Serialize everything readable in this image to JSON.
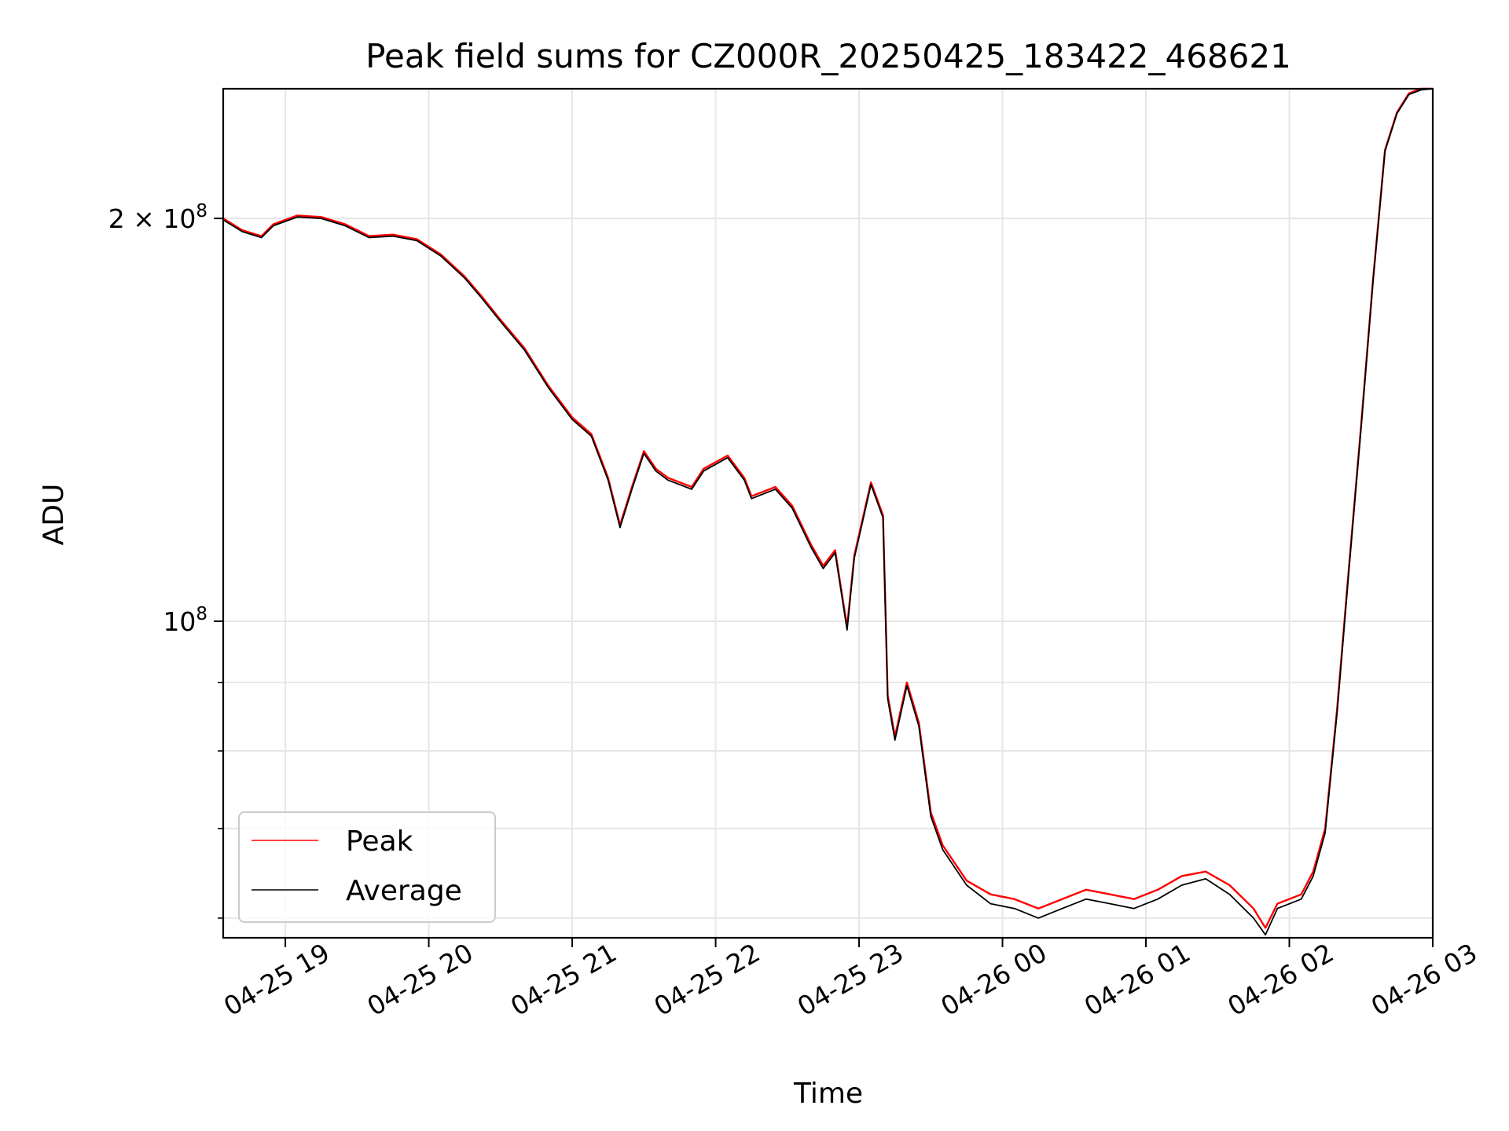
{
  "chart_data": {
    "type": "line",
    "title": "Peak field sums for CZ000R_20250425_183422_468621",
    "xlabel": "Time",
    "ylabel": "ADU",
    "x_is_time": true,
    "xlim": [
      "2025-04-25 18:34",
      "2025-04-26 03:00"
    ],
    "ylim": [
      58000000,
      250000000
    ],
    "y_scale": "log",
    "grid": true,
    "legend_position": "lower-left",
    "x_ticks": [
      {
        "t": "2025-04-25 19:00",
        "label": "04-25 19"
      },
      {
        "t": "2025-04-25 20:00",
        "label": "04-25 20"
      },
      {
        "t": "2025-04-25 21:00",
        "label": "04-25 21"
      },
      {
        "t": "2025-04-25 22:00",
        "label": "04-25 22"
      },
      {
        "t": "2025-04-25 23:00",
        "label": "04-25 23"
      },
      {
        "t": "2025-04-26 00:00",
        "label": "04-26 00"
      },
      {
        "t": "2025-04-26 01:00",
        "label": "04-26 01"
      },
      {
        "t": "2025-04-26 02:00",
        "label": "04-26 02"
      },
      {
        "t": "2025-04-26 03:00",
        "label": "04-26 03"
      }
    ],
    "y_major_ticks": [
      {
        "value": 100000000,
        "base": "10",
        "exp": "8",
        "coef": ""
      },
      {
        "value": 200000000,
        "base": "10",
        "exp": "8",
        "coef": "2"
      }
    ],
    "y_minor_ticks": [
      60000000,
      70000000,
      80000000,
      90000000
    ],
    "series": [
      {
        "name": "Peak",
        "color": "#ff0000",
        "x": [
          "2025-04-25 18:34",
          "2025-04-25 18:42",
          "2025-04-25 18:50",
          "2025-04-25 18:55",
          "2025-04-25 19:05",
          "2025-04-25 19:15",
          "2025-04-25 19:25",
          "2025-04-25 19:35",
          "2025-04-25 19:45",
          "2025-04-25 19:55",
          "2025-04-25 20:05",
          "2025-04-25 20:15",
          "2025-04-25 20:22",
          "2025-04-25 20:30",
          "2025-04-25 20:40",
          "2025-04-25 20:50",
          "2025-04-25 21:00",
          "2025-04-25 21:08",
          "2025-04-25 21:15",
          "2025-04-25 21:20",
          "2025-04-25 21:25",
          "2025-04-25 21:30",
          "2025-04-25 21:35",
          "2025-04-25 21:40",
          "2025-04-25 21:50",
          "2025-04-25 21:55",
          "2025-04-25 22:05",
          "2025-04-25 22:12",
          "2025-04-25 22:15",
          "2025-04-25 22:25",
          "2025-04-25 22:32",
          "2025-04-25 22:40",
          "2025-04-25 22:45",
          "2025-04-25 22:50",
          "2025-04-25 22:55",
          "2025-04-25 22:58",
          "2025-04-25 23:05",
          "2025-04-25 23:10",
          "2025-04-25 23:12",
          "2025-04-25 23:15",
          "2025-04-25 23:20",
          "2025-04-25 23:25",
          "2025-04-25 23:30",
          "2025-04-25 23:35",
          "2025-04-25 23:45",
          "2025-04-25 23:55",
          "2025-04-26 00:05",
          "2025-04-26 00:15",
          "2025-04-26 00:25",
          "2025-04-26 00:35",
          "2025-04-26 00:45",
          "2025-04-26 00:55",
          "2025-04-26 01:05",
          "2025-04-26 01:15",
          "2025-04-26 01:25",
          "2025-04-26 01:35",
          "2025-04-26 01:45",
          "2025-04-26 01:50",
          "2025-04-26 01:55",
          "2025-04-26 02:05",
          "2025-04-26 02:10",
          "2025-04-26 02:15",
          "2025-04-26 02:20",
          "2025-04-26 02:25",
          "2025-04-26 02:30",
          "2025-04-26 02:35",
          "2025-04-26 02:40",
          "2025-04-26 02:45",
          "2025-04-26 02:50",
          "2025-04-26 02:55",
          "2025-04-26 03:00"
        ],
        "values": [
          200000000,
          196000000,
          194000000,
          198000000,
          201000000,
          200500000,
          198000000,
          194000000,
          194500000,
          193000000,
          188000000,
          181000000,
          175000000,
          168000000,
          160000000,
          150000000,
          142000000,
          138000000,
          128000000,
          118000000,
          126000000,
          134000000,
          130000000,
          128000000,
          126000000,
          130000000,
          133000000,
          128000000,
          124000000,
          126000000,
          122000000,
          114000000,
          110000000,
          113000000,
          99000000,
          112000000,
          127000000,
          120000000,
          88000000,
          82000000,
          90000000,
          84000000,
          72000000,
          68000000,
          64000000,
          62500000,
          62000000,
          61000000,
          62000000,
          63000000,
          62500000,
          62000000,
          63000000,
          64500000,
          65000000,
          63500000,
          61000000,
          59000000,
          61500000,
          62500000,
          65000000,
          70000000,
          86000000,
          110000000,
          140000000,
          180000000,
          225000000,
          240000000,
          248000000,
          250000000,
          251000000
        ]
      },
      {
        "name": "Average",
        "color": "#000000",
        "x": [
          "2025-04-25 18:34",
          "2025-04-25 18:42",
          "2025-04-25 18:50",
          "2025-04-25 18:55",
          "2025-04-25 19:05",
          "2025-04-25 19:15",
          "2025-04-25 19:25",
          "2025-04-25 19:35",
          "2025-04-25 19:45",
          "2025-04-25 19:55",
          "2025-04-25 20:05",
          "2025-04-25 20:15",
          "2025-04-25 20:22",
          "2025-04-25 20:30",
          "2025-04-25 20:40",
          "2025-04-25 20:50",
          "2025-04-25 21:00",
          "2025-04-25 21:08",
          "2025-04-25 21:15",
          "2025-04-25 21:20",
          "2025-04-25 21:25",
          "2025-04-25 21:30",
          "2025-04-25 21:35",
          "2025-04-25 21:40",
          "2025-04-25 21:50",
          "2025-04-25 21:55",
          "2025-04-25 22:05",
          "2025-04-25 22:12",
          "2025-04-25 22:15",
          "2025-04-25 22:25",
          "2025-04-25 22:32",
          "2025-04-25 22:40",
          "2025-04-25 22:45",
          "2025-04-25 22:50",
          "2025-04-25 22:55",
          "2025-04-25 22:58",
          "2025-04-25 23:05",
          "2025-04-25 23:10",
          "2025-04-25 23:12",
          "2025-04-25 23:15",
          "2025-04-25 23:20",
          "2025-04-25 23:25",
          "2025-04-25 23:30",
          "2025-04-25 23:35",
          "2025-04-25 23:45",
          "2025-04-25 23:55",
          "2025-04-26 00:05",
          "2025-04-26 00:15",
          "2025-04-26 00:25",
          "2025-04-26 00:35",
          "2025-04-26 00:45",
          "2025-04-26 00:55",
          "2025-04-26 01:05",
          "2025-04-26 01:15",
          "2025-04-26 01:25",
          "2025-04-26 01:35",
          "2025-04-26 01:45",
          "2025-04-26 01:50",
          "2025-04-26 01:55",
          "2025-04-26 02:05",
          "2025-04-26 02:10",
          "2025-04-26 02:15",
          "2025-04-26 02:20",
          "2025-04-26 02:25",
          "2025-04-26 02:30",
          "2025-04-26 02:35",
          "2025-04-26 02:40",
          "2025-04-26 02:45",
          "2025-04-26 02:50",
          "2025-04-26 02:55",
          "2025-04-26 03:00"
        ],
        "values": [
          199500000,
          195500000,
          193500000,
          197500000,
          200500000,
          200000000,
          197500000,
          193500000,
          194000000,
          192500000,
          187500000,
          180500000,
          174500000,
          167500000,
          159500000,
          149500000,
          141500000,
          137500000,
          127500000,
          117500000,
          125500000,
          133500000,
          129500000,
          127500000,
          125500000,
          129500000,
          132500000,
          127500000,
          123500000,
          125500000,
          121500000,
          113500000,
          109500000,
          112500000,
          98500000,
          111500000,
          126500000,
          119500000,
          87500000,
          81500000,
          89500000,
          83500000,
          71500000,
          67500000,
          63500000,
          61500000,
          61000000,
          60000000,
          61000000,
          62000000,
          61500000,
          61000000,
          62000000,
          63500000,
          64200000,
          62500000,
          60000000,
          58300000,
          61000000,
          62000000,
          64500000,
          69500000,
          85500000,
          109500000,
          139500000,
          179500000,
          224500000,
          239500000,
          247500000,
          249500000,
          250500000
        ]
      }
    ]
  }
}
